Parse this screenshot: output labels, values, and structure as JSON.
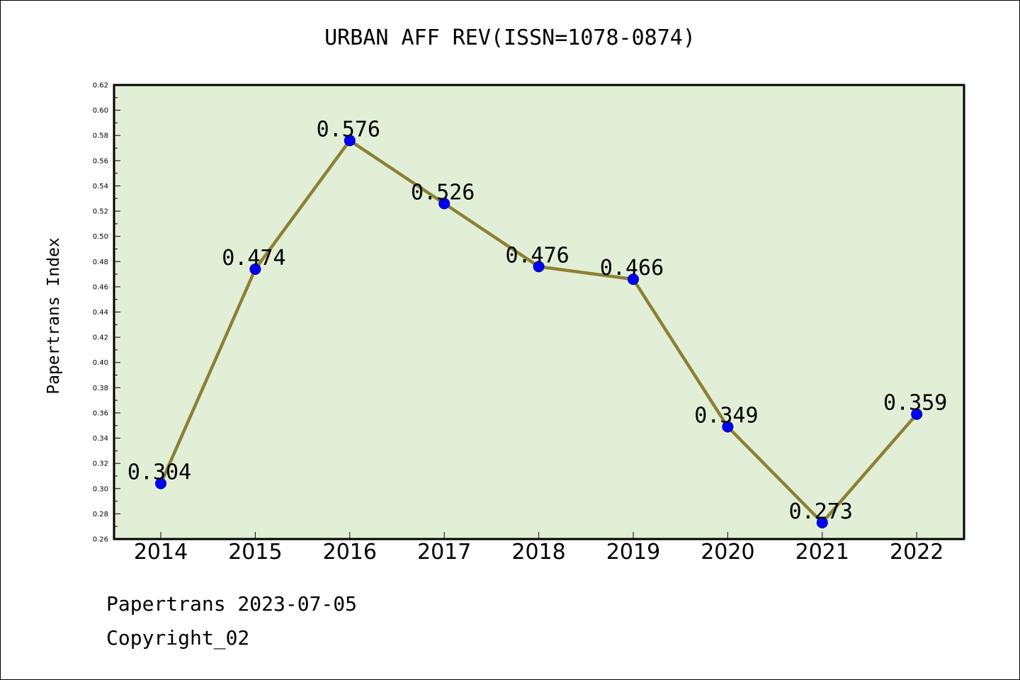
{
  "title": "URBAN AFF REV(ISSN=1078-0874)",
  "footer": {
    "line1": "Papertrans 2023-07-05",
    "line2": "Copyright_02"
  },
  "colors": {
    "plot_background": "#e1efd6",
    "line": "#8b8035",
    "marker": "#0000ff",
    "axis": "#000000"
  },
  "chart_data": {
    "type": "line",
    "title": "URBAN AFF REV(ISSN=1078-0874)",
    "xlabel": "",
    "ylabel": "Papertrans Index",
    "categories": [
      "2014",
      "2015",
      "2016",
      "2017",
      "2018",
      "2019",
      "2020",
      "2021",
      "2022"
    ],
    "values": [
      0.304,
      0.474,
      0.576,
      0.526,
      0.476,
      0.466,
      0.349,
      0.273,
      0.359
    ],
    "data_labels": [
      "0.304",
      "0.474",
      "0.576",
      "0.526",
      "0.476",
      "0.466",
      "0.349",
      "0.273",
      "0.359"
    ],
    "ylim": [
      0.26,
      0.62
    ],
    "yticks": [
      "0.26",
      "0.28",
      "0.30",
      "0.32",
      "0.34",
      "0.36",
      "0.38",
      "0.40",
      "0.42",
      "0.44",
      "0.46",
      "0.48",
      "0.50",
      "0.52",
      "0.54",
      "0.56",
      "0.58",
      "0.60",
      "0.62"
    ],
    "grid": false,
    "legend": "none"
  }
}
